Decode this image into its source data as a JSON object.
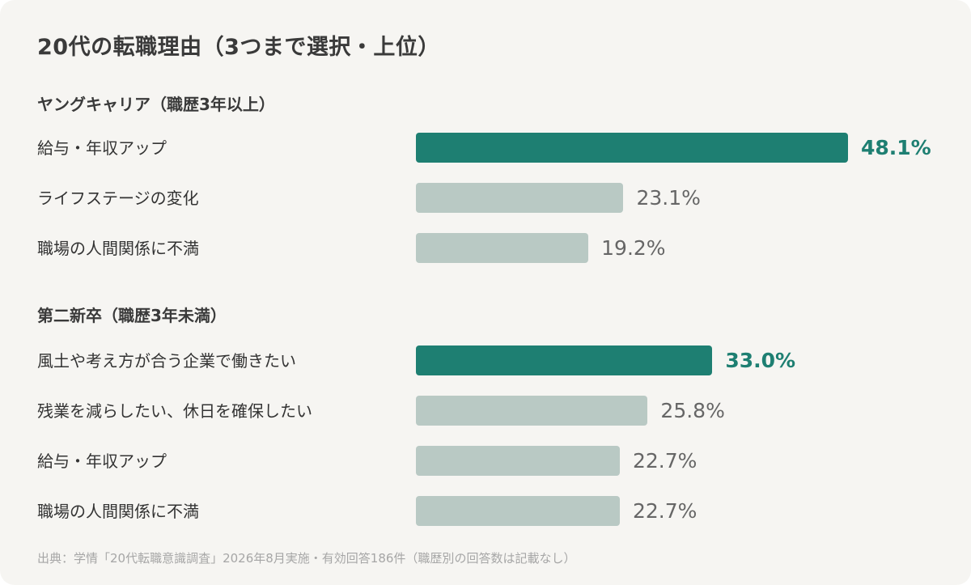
{
  "chart_data": {
    "type": "bar",
    "orientation": "horizontal",
    "title": "20代の転職理由（3つまで選択・上位）",
    "unit": "%",
    "groups": [
      {
        "name": "ヤングキャリア（職歴3年以上）",
        "categories": [
          "給与・年収アップ",
          "ライフステージの変化",
          "職場の人間関係に不満"
        ],
        "values": [
          48.1,
          23.1,
          19.2
        ],
        "value_labels": [
          "48.1%",
          "23.1%",
          "19.2%"
        ]
      },
      {
        "name": "第二新卒（職歴3年未満）",
        "categories": [
          "風土や考え方が合う企業で働きたい",
          "残業を減らしたい、休日を確保したい",
          "給与・年収アップ",
          "職場の人間関係に不満"
        ],
        "values": [
          33.0,
          25.8,
          22.7,
          22.7
        ],
        "value_labels": [
          "33.0%",
          "25.8%",
          "22.7%",
          "22.7%"
        ]
      }
    ],
    "highlight": "top item per group",
    "colors": {
      "highlight": "#1e7f72",
      "other": "#b9c9c4"
    },
    "source": "出典：学情「20代転職意識調査」2026年8月実施・有効回答186件（職歴別の回答数は記載なし）"
  }
}
